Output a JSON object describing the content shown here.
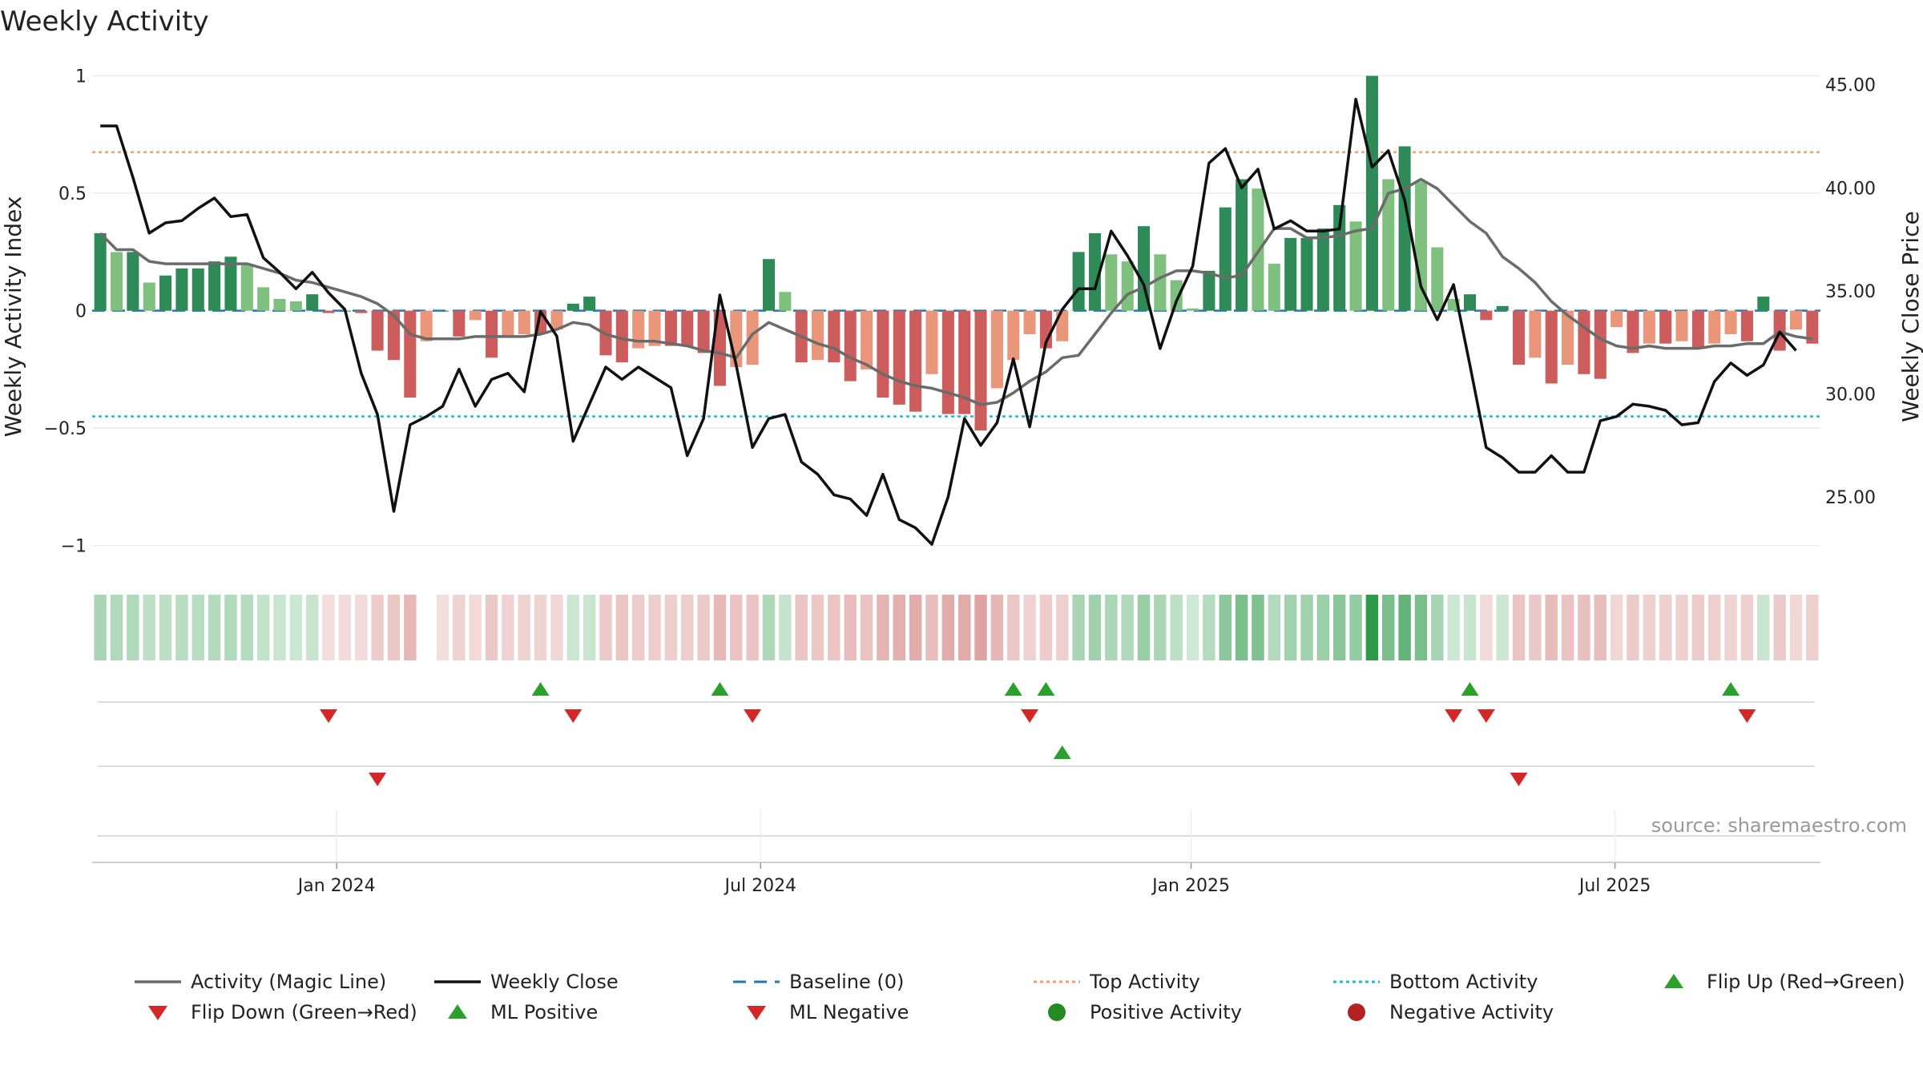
{
  "chart_data": {
    "type": "bar",
    "title": "Weekly Activity",
    "ylabel": "Weekly Activity Index",
    "y2label": "Weekly Close Price",
    "ylim": [
      -1.1,
      1.05
    ],
    "y2lim": [
      21.5,
      46.0
    ],
    "yticks": [
      {
        "v": 1,
        "label": "1"
      },
      {
        "v": 0.5,
        "label": "0.5"
      },
      {
        "v": 0,
        "label": "0"
      },
      {
        "v": -0.5,
        "label": "−0.5"
      },
      {
        "v": -1,
        "label": "−1"
      }
    ],
    "y2ticks": [
      {
        "v": 45,
        "label": "45.00"
      },
      {
        "v": 40,
        "label": "40.00"
      },
      {
        "v": 35,
        "label": "35.00"
      },
      {
        "v": 30,
        "label": "30.00"
      },
      {
        "v": 25,
        "label": "25.00"
      }
    ],
    "xticks": [
      {
        "week": 14.5,
        "label": "Jan 2024"
      },
      {
        "week": 40.5,
        "label": "Jul 2024"
      },
      {
        "week": 66.9,
        "label": "Jan 2025"
      },
      {
        "week": 92.9,
        "label": "Jul 2025"
      }
    ],
    "top_activity": 0.675,
    "bottom_activity": -0.45,
    "activity": [
      0.33,
      0.25,
      0.25,
      0.12,
      0.15,
      0.18,
      0.18,
      0.21,
      0.23,
      0.2,
      0.1,
      0.05,
      0.04,
      0.07,
      -0.01,
      0,
      -0.01,
      -0.17,
      -0.21,
      -0.37,
      -0.13,
      0,
      -0.11,
      -0.04,
      -0.2,
      -0.11,
      -0.1,
      -0.1,
      -0.08,
      0.03,
      0.06,
      -0.19,
      -0.22,
      -0.16,
      -0.15,
      -0.15,
      -0.15,
      -0.18,
      -0.32,
      -0.24,
      -0.23,
      0.22,
      0.08,
      -0.22,
      -0.21,
      -0.22,
      -0.3,
      -0.25,
      -0.37,
      -0.4,
      -0.43,
      -0.27,
      -0.44,
      -0.44,
      -0.51,
      -0.33,
      -0.21,
      -0.1,
      -0.16,
      -0.13,
      0.25,
      0.33,
      0.24,
      0.21,
      0.36,
      0.24,
      0.13,
      0.01,
      0.17,
      0.44,
      0.56,
      0.52,
      0.2,
      0.31,
      0.31,
      0.35,
      0.45,
      0.38,
      1.0,
      0.56,
      0.7,
      0.55,
      0.27,
      0.05,
      0.07,
      -0.04,
      0.02,
      -0.23,
      -0.2,
      -0.31,
      -0.23,
      -0.27,
      -0.29,
      -0.07,
      -0.18,
      -0.14,
      -0.14,
      -0.13,
      -0.16,
      -0.14,
      -0.1,
      -0.13,
      0.06,
      -0.17,
      -0.08,
      -0.14
    ],
    "magic_line": [
      0.33,
      0.26,
      0.26,
      0.21,
      0.2,
      0.2,
      0.2,
      0.2,
      0.2,
      0.2,
      0.18,
      0.16,
      0.13,
      0.12,
      0.1,
      0.08,
      0.06,
      0.03,
      -0.02,
      -0.1,
      -0.12,
      -0.12,
      -0.12,
      -0.11,
      -0.11,
      -0.11,
      -0.11,
      -0.1,
      -0.08,
      -0.05,
      -0.06,
      -0.1,
      -0.12,
      -0.13,
      -0.13,
      -0.14,
      -0.15,
      -0.17,
      -0.18,
      -0.2,
      -0.1,
      -0.05,
      -0.08,
      -0.11,
      -0.14,
      -0.16,
      -0.2,
      -0.23,
      -0.27,
      -0.3,
      -0.32,
      -0.33,
      -0.35,
      -0.37,
      -0.4,
      -0.39,
      -0.35,
      -0.3,
      -0.26,
      -0.2,
      -0.19,
      -0.1,
      -0.01,
      0.07,
      0.1,
      0.14,
      0.17,
      0.17,
      0.16,
      0.14,
      0.15,
      0.25,
      0.35,
      0.35,
      0.31,
      0.31,
      0.32,
      0.34,
      0.35,
      0.5,
      0.52,
      0.56,
      0.52,
      0.45,
      0.38,
      0.33,
      0.23,
      0.18,
      0.12,
      0.04,
      -0.02,
      -0.07,
      -0.12,
      -0.15,
      -0.16,
      -0.15,
      -0.16,
      -0.16,
      -0.16,
      -0.15,
      -0.15,
      -0.14,
      -0.14,
      -0.09,
      -0.11,
      -0.12
    ],
    "weekly_close": [
      43.0,
      43.0,
      40.5,
      37.8,
      38.3,
      38.4,
      39.0,
      39.5,
      38.6,
      38.7,
      36.6,
      35.9,
      35.1,
      35.9,
      34.9,
      34.1,
      31.0,
      29.0,
      24.3,
      28.5,
      28.9,
      29.4,
      31.2,
      29.4,
      30.7,
      31.0,
      30.1,
      34.0,
      32.8,
      27.7,
      29.5,
      31.3,
      30.7,
      31.3,
      30.8,
      30.3,
      27.0,
      28.8,
      34.8,
      31.4,
      27.4,
      28.8,
      29.0,
      26.7,
      26.1,
      25.1,
      24.9,
      24.1,
      26.1,
      23.9,
      23.5,
      22.7,
      25.0,
      28.8,
      27.5,
      28.6,
      31.7,
      28.4,
      32.5,
      34.1,
      35.1,
      35.1,
      37.9,
      36.7,
      35.3,
      32.2,
      34.5,
      36.2,
      41.2,
      41.9,
      40.0,
      40.9,
      38.0,
      38.4,
      37.9,
      37.9,
      38.0,
      44.3,
      41.0,
      41.8,
      39.4,
      35.2,
      33.6,
      35.3,
      31.4,
      27.4,
      26.9,
      26.2,
      26.2,
      27.0,
      26.2,
      26.2,
      28.7,
      28.9,
      29.5,
      29.4,
      29.2,
      28.5,
      28.6,
      30.6,
      31.5,
      30.9,
      31.4,
      33.0,
      32.1
    ],
    "heat_strip": [
      0.22,
      0.18,
      0.18,
      0.1,
      0.12,
      0.14,
      0.14,
      0.16,
      0.17,
      0.15,
      0.08,
      0.05,
      0.04,
      0.06,
      -0.01,
      -0.02,
      -0.03,
      -0.14,
      -0.18,
      -0.3,
      null,
      -0.01,
      -0.1,
      -0.04,
      -0.17,
      -0.1,
      -0.09,
      -0.09,
      -0.07,
      0.03,
      0.05,
      -0.16,
      -0.19,
      -0.14,
      -0.13,
      -0.13,
      -0.13,
      -0.16,
      -0.28,
      -0.2,
      -0.2,
      0.2,
      0.07,
      -0.19,
      -0.18,
      -0.19,
      -0.26,
      -0.22,
      -0.32,
      -0.35,
      -0.37,
      -0.24,
      -0.38,
      -0.38,
      -0.44,
      -0.29,
      -0.18,
      -0.09,
      -0.14,
      -0.11,
      0.22,
      0.28,
      0.21,
      0.18,
      0.31,
      0.21,
      0.11,
      0.01,
      0.15,
      0.38,
      0.48,
      0.45,
      0.17,
      0.27,
      0.27,
      0.3,
      0.39,
      0.33,
      0.9,
      0.48,
      0.6,
      0.47,
      0.23,
      0.04,
      0.06,
      -0.04,
      0.02,
      -0.2,
      -0.17,
      -0.27,
      -0.2,
      -0.23,
      -0.25,
      -0.06,
      -0.16,
      -0.12,
      -0.12,
      -0.11,
      -0.14,
      -0.12,
      -0.09,
      -0.11,
      0.05,
      -0.15,
      -0.07,
      -0.12
    ],
    "flip_up_weeks": [
      27,
      38,
      56,
      58,
      84,
      100
    ],
    "flip_down_weeks": [
      14,
      29,
      40,
      57,
      83,
      85,
      101
    ],
    "ml_positive_weeks": [
      59
    ],
    "ml_negative_weeks": [
      17,
      87
    ],
    "colors": {
      "strong_green": "#2e8b57",
      "light_green": "#7fc07f",
      "strong_red": "#cd5c5c",
      "light_red": "#e9967a",
      "magic_line": "#6b6b6b",
      "close": "#111111",
      "baseline": "#1f77b4",
      "top": "#f0a070",
      "bottom": "#17becf",
      "up_marker": "#2ca02c",
      "down_marker": "#d62728"
    },
    "legend": [
      {
        "label": "Activity (Magic Line)",
        "kind": "line",
        "color": "#6b6b6b"
      },
      {
        "label": "Weekly Close",
        "kind": "line",
        "color": "#111111"
      },
      {
        "label": "Baseline (0)",
        "kind": "dash",
        "color": "#1f77b4"
      },
      {
        "label": "Top Activity",
        "kind": "dot",
        "color": "#f0a070"
      },
      {
        "label": "Bottom Activity",
        "kind": "dot",
        "color": "#17becf"
      },
      {
        "label": "Flip Up (Red→Green)",
        "kind": "tri-up",
        "color": "#2ca02c"
      },
      {
        "label": "Flip Down (Green→Red)",
        "kind": "tri-down",
        "color": "#d62728"
      },
      {
        "label": "ML Positive",
        "kind": "tri-up",
        "color": "#2ca02c"
      },
      {
        "label": "ML Negative",
        "kind": "tri-down",
        "color": "#d62728"
      },
      {
        "label": "Positive Activity",
        "kind": "circle",
        "color": "#228b22"
      },
      {
        "label": "Negative Activity",
        "kind": "circle",
        "color": "#b22222"
      }
    ]
  },
  "source": "source: sharemaestro.com"
}
